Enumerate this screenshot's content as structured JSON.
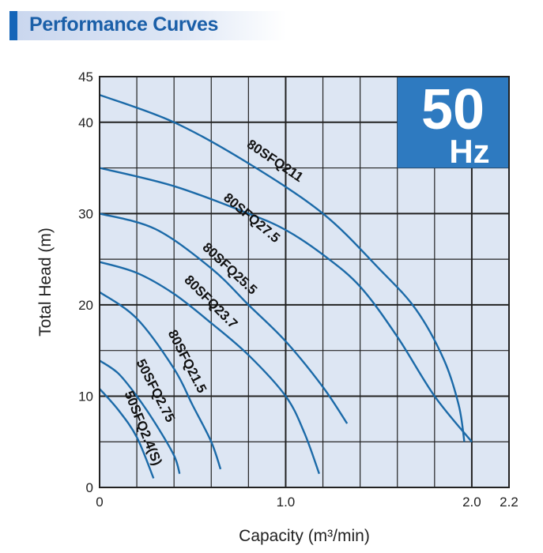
{
  "header": {
    "title": "Performance Curves"
  },
  "badge": {
    "value": "50",
    "unit": "Hz",
    "color": "#2e7ac0"
  },
  "chart_data": {
    "type": "line",
    "xlabel": "Capacity (m³/min)",
    "ylabel": "Total Head (m)",
    "xlim": [
      0,
      2.2
    ],
    "ylim": [
      0,
      45
    ],
    "x_ticks": [
      {
        "v": 0,
        "label": "0"
      },
      {
        "v": 1.0,
        "label": "1.0"
      },
      {
        "v": 2.0,
        "label": "2.0"
      },
      {
        "v": 2.2,
        "label": "2.2"
      }
    ],
    "y_ticks": [
      {
        "v": 0,
        "label": "0"
      },
      {
        "v": 10,
        "label": "10"
      },
      {
        "v": 20,
        "label": "20"
      },
      {
        "v": 30,
        "label": "30"
      },
      {
        "v": 40,
        "label": "40"
      },
      {
        "v": 45,
        "label": "45"
      }
    ],
    "grid": {
      "x_step": 0.2,
      "y_step": 5
    },
    "line_color": "#1b6aa8",
    "series": [
      {
        "name": "80SFQ211",
        "points": [
          [
            0,
            43
          ],
          [
            0.4,
            40
          ],
          [
            0.8,
            35.5
          ],
          [
            1.2,
            30
          ],
          [
            1.5,
            24
          ],
          [
            1.7,
            19.5
          ],
          [
            1.85,
            14
          ],
          [
            1.93,
            9
          ],
          [
            1.96,
            5
          ]
        ]
      },
      {
        "name": "80SFQ27.5",
        "points": [
          [
            0,
            35
          ],
          [
            0.4,
            33
          ],
          [
            0.8,
            30
          ],
          [
            1.0,
            28.2
          ],
          [
            1.2,
            25.5
          ],
          [
            1.4,
            22
          ],
          [
            1.6,
            16.5
          ],
          [
            1.8,
            10
          ],
          [
            2.0,
            5
          ]
        ]
      },
      {
        "name": "80SFQ25.5",
        "points": [
          [
            0,
            30
          ],
          [
            0.3,
            28.3
          ],
          [
            0.6,
            24
          ],
          [
            0.8,
            20
          ],
          [
            1.0,
            16
          ],
          [
            1.2,
            11
          ],
          [
            1.33,
            7
          ]
        ]
      },
      {
        "name": "80SFQ23.7",
        "points": [
          [
            0,
            24.7
          ],
          [
            0.2,
            23.5
          ],
          [
            0.4,
            21.2
          ],
          [
            0.6,
            18
          ],
          [
            0.8,
            14.5
          ],
          [
            1.0,
            10
          ],
          [
            1.1,
            6
          ],
          [
            1.18,
            1.5
          ]
        ]
      },
      {
        "name": "80SFQ21.5",
        "points": [
          [
            0,
            21.4
          ],
          [
            0.2,
            18.5
          ],
          [
            0.4,
            13
          ],
          [
            0.5,
            9
          ],
          [
            0.6,
            5
          ],
          [
            0.65,
            2
          ]
        ]
      },
      {
        "name": "50SFQ2.75",
        "points": [
          [
            0,
            13.9
          ],
          [
            0.1,
            12.5
          ],
          [
            0.2,
            10
          ],
          [
            0.3,
            7
          ],
          [
            0.4,
            3.5
          ],
          [
            0.43,
            1.5
          ]
        ]
      },
      {
        "name": "50SFQ2.4(S)",
        "points": [
          [
            0,
            10.8
          ],
          [
            0.1,
            8.5
          ],
          [
            0.2,
            5.5
          ],
          [
            0.29,
            1
          ]
        ]
      }
    ]
  }
}
